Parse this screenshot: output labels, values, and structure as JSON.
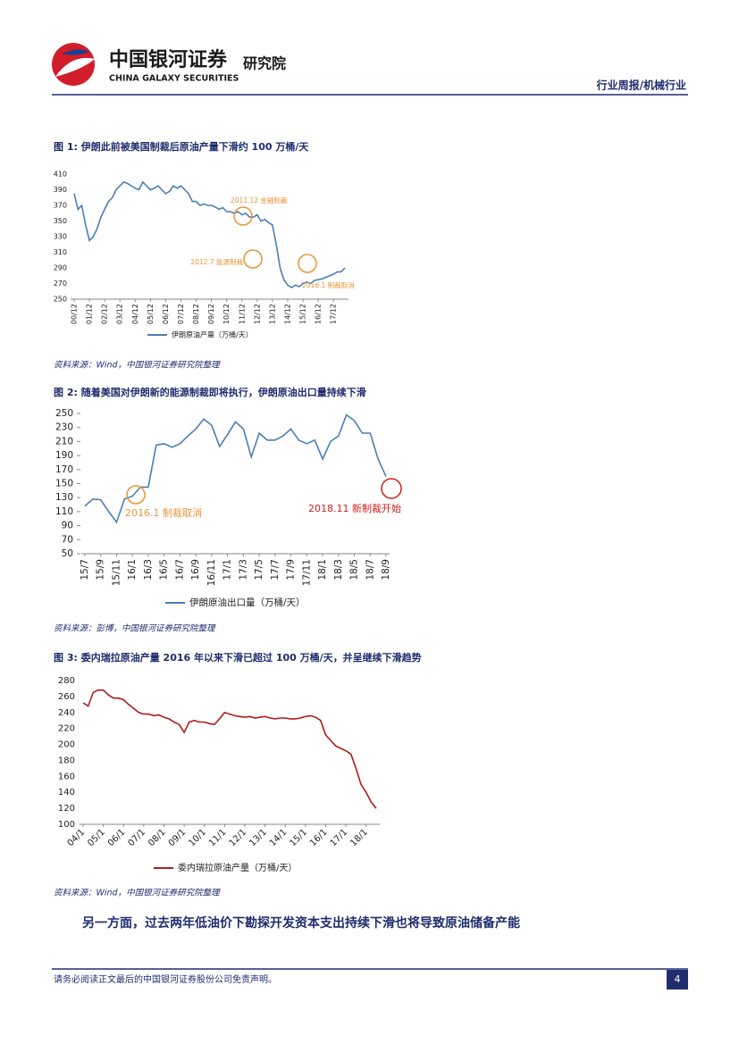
{
  "header": {
    "logo_cn": "中国银河证券",
    "logo_en": "CHINA GALAXY SECURITIES",
    "institute": "研究院",
    "section": "行业周报/机械行业"
  },
  "figures": [
    {
      "caption": "图 1:  伊朗此前被美国制裁后原油产量下滑约 100 万桶/天",
      "source": "资料来源：Wind，中国银河证券研究院整理"
    },
    {
      "caption": "图 2:  随着美国对伊朗新的能源制裁即将执行，伊朗原油出口量持续下滑",
      "source": "资料来源：彭博，中国银河证券研究院整理"
    },
    {
      "caption": "图 3:  委内瑞拉原油产量 2016 年以来下滑已超过 100 万桶/天，并呈继续下滑趋势",
      "source": "资料来源：Wind，中国银河证券研究院整理"
    }
  ],
  "body": "另一方面，过去两年低油价下勘探开发资本支出持续下滑也将导致原油储备产能",
  "footer": {
    "disclaimer": "请务必阅读正文最后的中国银河证券股份公司免责声明。",
    "page": "4"
  },
  "chart_data": [
    {
      "type": "line",
      "categories": [
        "00/12",
        null,
        null,
        null,
        "01/12",
        null,
        null,
        null,
        "02/12",
        null,
        null,
        null,
        "03/12",
        null,
        null,
        null,
        "04/12",
        null,
        null,
        null,
        "05/12",
        null,
        null,
        null,
        "06/12",
        null,
        null,
        null,
        "07/12",
        null,
        null,
        null,
        "08/12",
        null,
        null,
        null,
        "09/12",
        null,
        null,
        null,
        "10/12",
        null,
        null,
        null,
        "11/12",
        null,
        null,
        null,
        "12/12",
        null,
        null,
        null,
        "13/12",
        null,
        null,
        null,
        "14/12",
        null,
        null,
        null,
        "15/12",
        null,
        null,
        null,
        "16/12",
        null,
        null,
        null,
        "17/12",
        null,
        null,
        null
      ],
      "series": [
        {
          "name": "伊朗原油产量（万桶/天）",
          "color": "#4a7eb5",
          "values": [
            385,
            365,
            370,
            345,
            325,
            330,
            340,
            355,
            365,
            375,
            380,
            390,
            395,
            400,
            398,
            395,
            392,
            390,
            400,
            395,
            390,
            392,
            395,
            390,
            385,
            388,
            395,
            392,
            395,
            390,
            385,
            375,
            375,
            370,
            372,
            370,
            370,
            368,
            365,
            367,
            362,
            362,
            360,
            362,
            358,
            360,
            355,
            355,
            358,
            350,
            352,
            348,
            345,
            320,
            290,
            275,
            268,
            265,
            268,
            266,
            270,
            272,
            270,
            274,
            275,
            276,
            278,
            280,
            282,
            285,
            285,
            290
          ]
        }
      ],
      "ylim": [
        250,
        410
      ],
      "yticks": [
        250,
        270,
        290,
        310,
        330,
        350,
        370,
        390,
        410
      ],
      "annotations": [
        {
          "text": "2011.12 金融制裁",
          "color": "#e8943a"
        },
        {
          "text": "2012.7 能源制裁",
          "color": "#e8943a"
        },
        {
          "text": "2016.1 制裁取消",
          "color": "#e8943a"
        }
      ]
    },
    {
      "type": "line",
      "categories": [
        "15/7",
        null,
        "15/9",
        null,
        "15/11",
        null,
        "16/1",
        null,
        "16/3",
        null,
        "16/5",
        null,
        "16/7",
        null,
        "16/9",
        null,
        "16/11",
        null,
        "17/1",
        null,
        "17/3",
        null,
        "17/5",
        null,
        "17/7",
        null,
        "17/9",
        null,
        "17/11",
        null,
        "18/1",
        null,
        "18/3",
        null,
        "18/5",
        null,
        "18/7",
        null,
        "18/9"
      ],
      "series": [
        {
          "name": "伊朗原油出口量（万桶/天）",
          "color": "#4a7eb5",
          "values": [
            118,
            128,
            127,
            110,
            95,
            128,
            132,
            145,
            145,
            205,
            207,
            202,
            207,
            218,
            228,
            242,
            233,
            203,
            220,
            238,
            228,
            188,
            222,
            212,
            212,
            218,
            228,
            212,
            207,
            212,
            185,
            210,
            218,
            248,
            240,
            222,
            222,
            185,
            160
          ]
        }
      ],
      "ylim": [
        50,
        250
      ],
      "yticks": [
        50,
        70,
        90,
        110,
        130,
        150,
        170,
        190,
        210,
        230,
        250
      ],
      "annotations": [
        {
          "text": "2016.1 制裁取消",
          "color": "#e8943a"
        },
        {
          "text": "2018.11 新制裁开始",
          "color": "#d01e1e"
        }
      ]
    },
    {
      "type": "line",
      "categories": [
        "04/1",
        null,
        null,
        null,
        "05/1",
        null,
        null,
        null,
        "06/1",
        null,
        null,
        null,
        "07/1",
        null,
        null,
        null,
        "08/1",
        null,
        null,
        null,
        "09/1",
        null,
        null,
        null,
        "10/1",
        null,
        null,
        null,
        "11/1",
        null,
        null,
        null,
        "12/1",
        null,
        null,
        null,
        "13/1",
        null,
        null,
        null,
        "14/1",
        null,
        null,
        null,
        "15/1",
        null,
        null,
        null,
        "16/1",
        null,
        null,
        null,
        "17/1",
        null,
        null,
        null,
        "18/1",
        null,
        null
      ],
      "series": [
        {
          "name": "委内瑞拉原油产量（万桶/天）",
          "color": "#b01c1c",
          "values": [
            252,
            248,
            265,
            268,
            268,
            262,
            258,
            258,
            256,
            250,
            245,
            240,
            238,
            238,
            236,
            237,
            234,
            232,
            228,
            225,
            215,
            228,
            230,
            228,
            228,
            226,
            225,
            232,
            240,
            238,
            236,
            235,
            234,
            235,
            233,
            234,
            235,
            233,
            232,
            233,
            233,
            232,
            232,
            233,
            235,
            236,
            234,
            230,
            212,
            205,
            198,
            195,
            192,
            188,
            170,
            150,
            140,
            128,
            120
          ]
        }
      ],
      "ylim": [
        100,
        280
      ],
      "yticks": [
        100,
        120,
        140,
        160,
        180,
        200,
        220,
        240,
        260,
        280
      ],
      "annotations": []
    }
  ]
}
